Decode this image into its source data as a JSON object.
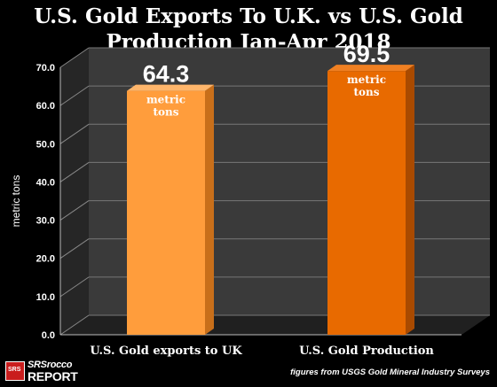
{
  "chart_data": {
    "type": "bar",
    "title_line1": "U.S. Gold Exports To U.K. vs U.S. Gold",
    "title_line2": "Production Jan-Apr 2018",
    "ylabel": "metric tons",
    "ylim": [
      0,
      70
    ],
    "yticks": [
      "0.0",
      "10.0",
      "20.0",
      "30.0",
      "40.0",
      "50.0",
      "60.0",
      "70.0"
    ],
    "categories": [
      "U.S. Gold exports to UK",
      "U.S. Gold Production"
    ],
    "values": [
      64.3,
      69.5
    ],
    "value_labels": [
      "64.3",
      "69.5"
    ],
    "unit_line1": "metric",
    "unit_line2": "tons",
    "bar_colors": [
      "#ff9d3c",
      "#e86a00"
    ],
    "grid": true,
    "legend": "none"
  },
  "footer": {
    "logo_line1": "SRSrocco",
    "logo_line2": "REPORT",
    "logo_badge": "SRS",
    "source": "figures from USGS Gold Mineral Industry Surveys"
  }
}
